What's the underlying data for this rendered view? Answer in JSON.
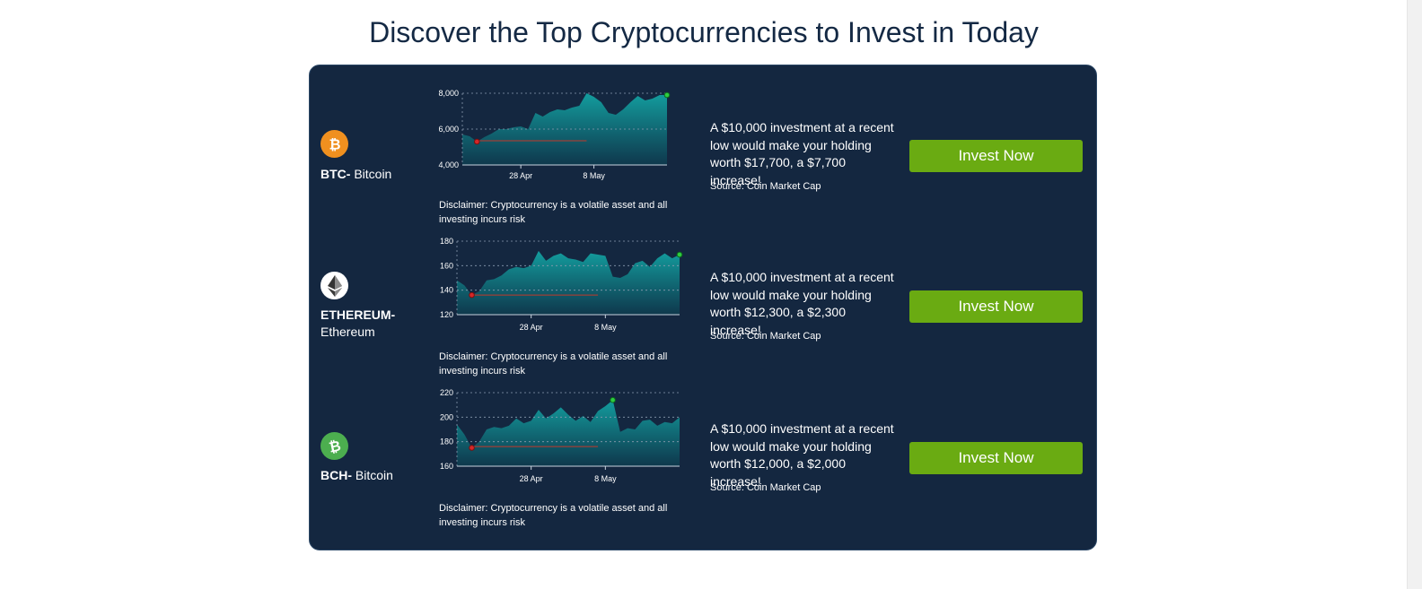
{
  "page": {
    "title": "Discover the Top Cryptocurrencies to Invest in Today"
  },
  "colors": {
    "panel_bg": "#142740",
    "button_bg": "#6aab12",
    "area_fill": "#13a3a3",
    "baseline": "#c0392b",
    "high_marker": "#2ecc40",
    "low_marker": "#d62728"
  },
  "coins": [
    {
      "symbol": "BTC-",
      "name": " Bitcoin",
      "icon": "bitcoin-icon",
      "icon_color": "#f0901f",
      "investment_text": "A $10,000 investment at a recent low would make your holding worth $17,700, a $7,700 increase!",
      "source": "Source: Coin Market Cap",
      "button_label": "Invest Now",
      "disclaimer": "Disclaimer: Cryptocurrency is a volatile asset and all investing incurs risk"
    },
    {
      "symbol": "ETHEREUM-",
      "name": " Ethereum",
      "icon": "ethereum-icon",
      "icon_color": "#ffffff",
      "investment_text": "A $10,000 investment at a recent low would make your holding worth $12,300, a $2,300 increase!",
      "source": "Source: Coin Market Cap",
      "button_label": "Invest Now",
      "disclaimer": "Disclaimer: Cryptocurrency is a volatile asset and all investing incurs risk"
    },
    {
      "symbol": "BCH-",
      "name": " Bitcoin",
      "icon": "bitcoin-cash-icon",
      "icon_color": "#4cae4f",
      "investment_text": "A $10,000 investment at a recent low would make your holding worth $12,000, a $2,000 increase!",
      "source": "Source: Coin Market Cap",
      "button_label": "Invest Now",
      "disclaimer": "Disclaimer: Cryptocurrency is a volatile asset and all investing incurs risk"
    }
  ],
  "chart_data": [
    {
      "type": "area",
      "x_tick_labels": [
        "28 Apr",
        "8 May"
      ],
      "x_tick_days": [
        8,
        18
      ],
      "ylim": [
        4000,
        8000
      ],
      "y_ticks": [
        4000,
        6000,
        8000
      ],
      "y_tick_labels": [
        "4,000",
        "6,000",
        "8,000"
      ],
      "x": [
        0,
        1,
        2,
        3,
        4,
        5,
        6,
        7,
        8,
        9,
        10,
        11,
        12,
        13,
        14,
        15,
        16,
        17,
        18,
        19,
        20,
        21,
        22,
        23,
        24,
        25,
        26,
        27,
        28
      ],
      "values": [
        5700,
        5600,
        5300,
        5550,
        5750,
        6000,
        6000,
        6100,
        6150,
        6000,
        6900,
        6700,
        6950,
        7100,
        7050,
        7200,
        7300,
        8000,
        7800,
        7500,
        6900,
        6800,
        7100,
        7500,
        7850,
        7600,
        7700,
        7900,
        7900
      ],
      "low_index": 2,
      "high_index": 28,
      "baseline_value": 5350,
      "grid": true
    },
    {
      "type": "area",
      "x_tick_labels": [
        "28 Apr",
        "8 May"
      ],
      "x_tick_days": [
        10,
        20
      ],
      "ylim": [
        120,
        180
      ],
      "y_ticks": [
        120,
        140,
        160,
        180
      ],
      "y_tick_labels": [
        "120",
        "140",
        "160",
        "180"
      ],
      "x": [
        0,
        1,
        2,
        3,
        4,
        5,
        6,
        7,
        8,
        9,
        10,
        11,
        12,
        13,
        14,
        15,
        16,
        17,
        18,
        19,
        20,
        21,
        22,
        23,
        24,
        25,
        26,
        27,
        28,
        29,
        30
      ],
      "values": [
        148,
        144,
        136,
        139,
        148,
        149,
        152,
        157,
        159,
        158,
        160,
        172,
        164,
        168,
        170,
        166,
        165,
        163,
        170,
        169,
        168,
        151,
        150,
        153,
        162,
        164,
        159,
        166,
        170,
        166,
        169
      ],
      "low_index": 2,
      "high_index": 30,
      "baseline_value": 136,
      "grid": true
    },
    {
      "type": "area",
      "x_tick_labels": [
        "28 Apr",
        "8 May"
      ],
      "x_tick_days": [
        10,
        20
      ],
      "ylim": [
        160,
        220
      ],
      "y_ticks": [
        160,
        180,
        200,
        220
      ],
      "y_tick_labels": [
        "160",
        "180",
        "200",
        "220"
      ],
      "x": [
        0,
        1,
        2,
        3,
        4,
        5,
        6,
        7,
        8,
        9,
        10,
        11,
        12,
        13,
        14,
        15,
        16,
        17,
        18,
        19,
        20,
        21,
        22,
        23,
        24,
        25,
        26,
        27,
        28,
        29,
        30
      ],
      "values": [
        194,
        186,
        175,
        180,
        190,
        192,
        191,
        193,
        199,
        195,
        197,
        206,
        199,
        203,
        208,
        202,
        197,
        201,
        196,
        205,
        209,
        214,
        188,
        191,
        190,
        197,
        198,
        193,
        196,
        195,
        200
      ],
      "low_index": 2,
      "high_index": 21,
      "baseline_value": 176,
      "grid": true
    }
  ]
}
